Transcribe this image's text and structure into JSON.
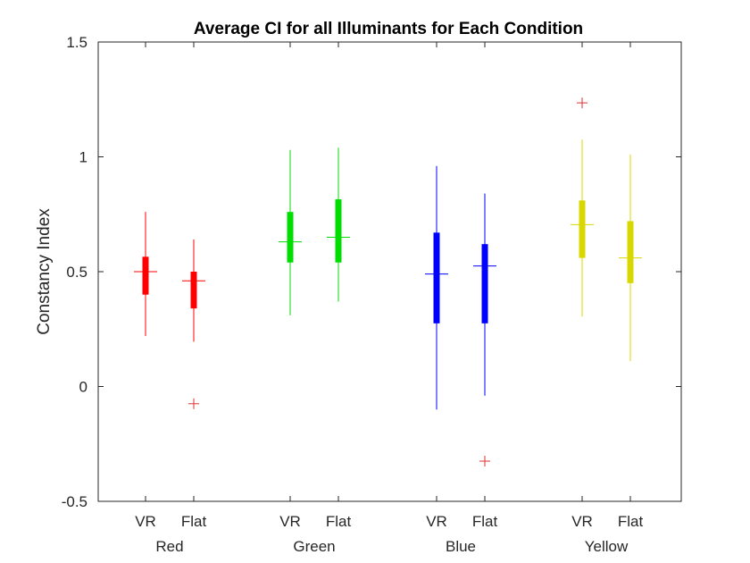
{
  "chart_data": {
    "type": "box",
    "title": "Average CI for all Illuminants for Each Condition",
    "ylabel": "Constancy Index",
    "xlabel": "",
    "ylim": [
      -0.5,
      1.5
    ],
    "yticks": [
      "-0.5",
      "0",
      "0.5",
      "1",
      "1.5"
    ],
    "ytick_values": [
      -0.5,
      0,
      0.5,
      1,
      1.5
    ],
    "grid": false,
    "groups": [
      {
        "name": "Red",
        "color": "#ff0000",
        "boxes": [
          {
            "label": "VR",
            "whisker_low": 0.22,
            "q1": 0.4,
            "median": 0.5,
            "q3": 0.565,
            "whisker_high": 0.76,
            "outliers": []
          },
          {
            "label": "Flat",
            "whisker_low": 0.195,
            "q1": 0.34,
            "median": 0.46,
            "q3": 0.5,
            "whisker_high": 0.64,
            "outliers": [
              -0.075
            ]
          }
        ]
      },
      {
        "name": "Green",
        "color": "#00dd00",
        "boxes": [
          {
            "label": "VR",
            "whisker_low": 0.31,
            "q1": 0.54,
            "median": 0.63,
            "q3": 0.76,
            "whisker_high": 1.03,
            "outliers": []
          },
          {
            "label": "Flat",
            "whisker_low": 0.37,
            "q1": 0.54,
            "median": 0.65,
            "q3": 0.815,
            "whisker_high": 1.04,
            "outliers": []
          }
        ]
      },
      {
        "name": "Blue",
        "color": "#0000ff",
        "boxes": [
          {
            "label": "VR",
            "whisker_low": -0.1,
            "q1": 0.275,
            "median": 0.49,
            "q3": 0.67,
            "whisker_high": 0.96,
            "outliers": []
          },
          {
            "label": "Flat",
            "whisker_low": -0.04,
            "q1": 0.275,
            "median": 0.525,
            "q3": 0.62,
            "whisker_high": 0.84,
            "outliers": [
              -0.325
            ]
          }
        ]
      },
      {
        "name": "Yellow",
        "color": "#d8d800",
        "boxes": [
          {
            "label": "VR",
            "whisker_low": 0.305,
            "q1": 0.56,
            "median": 0.705,
            "q3": 0.81,
            "whisker_high": 1.075,
            "outliers": [
              1.235
            ]
          },
          {
            "label": "Flat",
            "whisker_low": 0.11,
            "q1": 0.45,
            "median": 0.56,
            "q3": 0.72,
            "whisker_high": 1.01,
            "outliers": []
          }
        ]
      }
    ],
    "outlier_color": "#dd3333"
  }
}
